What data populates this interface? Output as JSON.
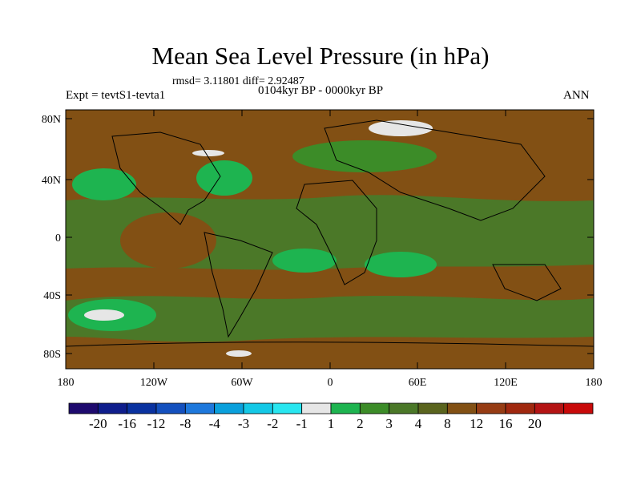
{
  "title": "Mean Sea Level Pressure (in hPa)",
  "stats": "rmsd= 3.11801 diff= 2.92487",
  "left_label": "Expt = tevtS1-tevta1",
  "center_label": "0104kyr BP - 0000kyr BP",
  "right_label": "ANN",
  "y_ticks": [
    "80N",
    "40N",
    "0",
    "40S",
    "80S"
  ],
  "x_ticks": [
    "180",
    "120W",
    "60W",
    "0",
    "60E",
    "120E",
    "180"
  ],
  "colorbar": {
    "colors": [
      "#1e0a6e",
      "#0f1e8c",
      "#0a32a0",
      "#1450be",
      "#1e78dc",
      "#0aa0dc",
      "#14c8e6",
      "#28e6f0",
      "#e6e6e6",
      "#1eb450",
      "#3c8c28",
      "#4b7828",
      "#5a641e",
      "#825014",
      "#963c14",
      "#a0280f",
      "#b41414",
      "#c80a0a"
    ],
    "labels": [
      "-20",
      "-16",
      "-12",
      "-8",
      "-4",
      "-3",
      "-2",
      "-1",
      "1",
      "2",
      "3",
      "4",
      "8",
      "12",
      "16",
      "20"
    ]
  }
}
